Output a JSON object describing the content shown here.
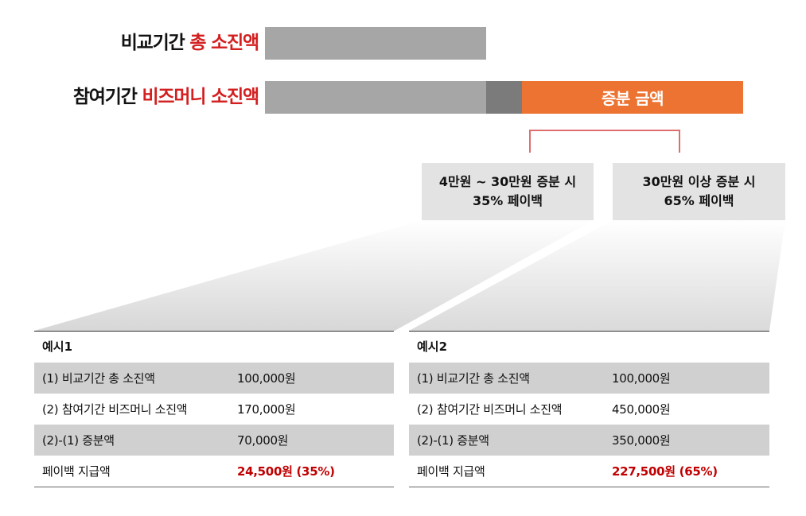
{
  "rows": {
    "comparison": {
      "label_plain": "비교기간",
      "label_highlight": "총 소진액"
    },
    "participation": {
      "label_plain": "참여기간",
      "label_highlight": "비즈머니 소진액"
    }
  },
  "increase_bar": {
    "label": "증분 금액"
  },
  "colors": {
    "highlight_red": "#d31f1f",
    "orange": "#ec7331",
    "bar_gray": "#a6a6a6",
    "bar_dark_gray": "#7b7b7b",
    "value_red": "#c00000"
  },
  "tiers": [
    {
      "line1": "4만원 ~ 30만원 증분 시",
      "line2": "35% 페이백"
    },
    {
      "line1": "30만원 이상 증분 시",
      "line2": "65% 페이백"
    }
  ],
  "examples": [
    {
      "title": "예시1",
      "rows": [
        {
          "label": "(1)   비교기간 총 소진액",
          "value": "100,000원"
        },
        {
          "label": "(2)  참여기간 비즈머니 소진액",
          "value": "170,000원"
        },
        {
          "label": "(2)-(1) 증분액",
          "value": "70,000원"
        },
        {
          "label": "페이백 지급액",
          "value": "24,500원 (35%)"
        }
      ]
    },
    {
      "title": "예시2",
      "rows": [
        {
          "label": "(1)   비교기간 총 소진액",
          "value": "100,000원"
        },
        {
          "label": "(2)  참여기간 비즈머니 소진액",
          "value": "450,000원"
        },
        {
          "label": "(2)-(1) 증분액",
          "value": "350,000원"
        },
        {
          "label": "페이백 지급액",
          "value": "227,500원 (65%)"
        }
      ]
    }
  ]
}
